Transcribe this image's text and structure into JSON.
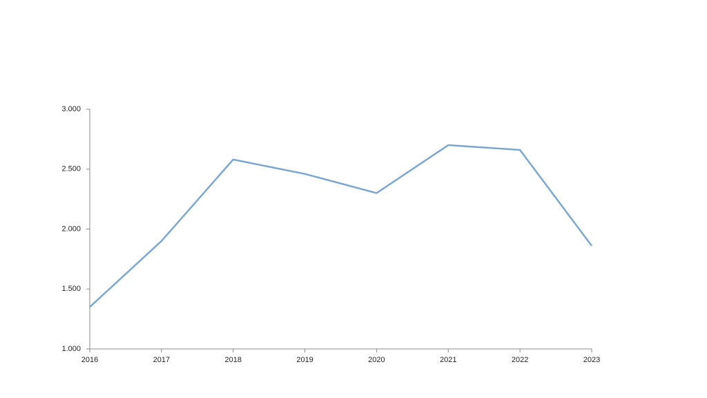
{
  "chart_data": {
    "type": "line",
    "categories": [
      "2016",
      "2017",
      "2018",
      "2019",
      "2020",
      "2021",
      "2022",
      "2023"
    ],
    "series": [
      {
        "color": "#7aa6d0",
        "values": [
          1350,
          1900,
          2580,
          2460,
          2300,
          2700,
          2660,
          1860
        ]
      }
    ],
    "ylim": [
      1000,
      3000
    ],
    "yticks": [
      {
        "value": 1000,
        "label": "1.000"
      },
      {
        "value": 1500,
        "label": "1.500"
      },
      {
        "value": 2000,
        "label": "2.000"
      },
      {
        "value": 2500,
        "label": "2.500"
      },
      {
        "value": 3000,
        "label": "3.000"
      }
    ],
    "grid": false
  }
}
